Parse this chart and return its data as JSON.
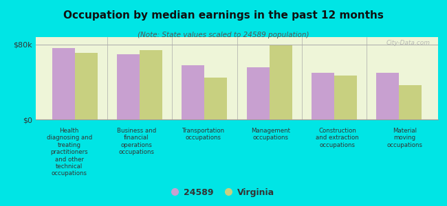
{
  "title": "Occupation by median earnings in the past 12 months",
  "subtitle": "(Note: State values scaled to 24589 population)",
  "background_color": "#00e5e5",
  "plot_bg_color": "#eef5d8",
  "categories": [
    "Health\ndiagnosing and\ntreating\npractitioners\nand other\ntechnical\noccupations",
    "Business and\nfinancial\noperations\noccupations",
    "Transportation\noccupations",
    "Management\noccupations",
    "Construction\nand extraction\noccupations",
    "Material\nmoving\noccupations"
  ],
  "values_24589": [
    76000,
    70000,
    58000,
    56000,
    50000,
    50000
  ],
  "values_virginia": [
    71000,
    74000,
    45000,
    79000,
    47000,
    37000
  ],
  "color_24589": "#c8a0d0",
  "color_virginia": "#c8d080",
  "ylim": [
    0,
    88000
  ],
  "yticks": [
    0,
    80000
  ],
  "ytick_labels": [
    "$0",
    "$80k"
  ],
  "legend_labels": [
    "24589",
    "Virginia"
  ],
  "watermark": "City-Data.com"
}
